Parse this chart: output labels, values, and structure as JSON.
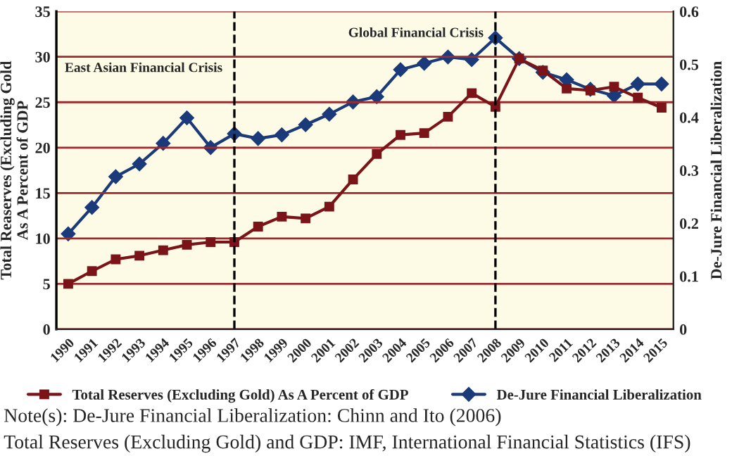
{
  "chart_data": {
    "type": "line",
    "categories": [
      "1990",
      "1991",
      "1992",
      "1993",
      "1994",
      "1995",
      "1996",
      "1997",
      "1998",
      "1999",
      "2000",
      "2001",
      "2002",
      "2003",
      "2004",
      "2005",
      "2006",
      "2007",
      "2008",
      "2009",
      "2010",
      "2011",
      "2012",
      "2013",
      "2014",
      "2015"
    ],
    "series": [
      {
        "name": "Total Reserves (Excluding Gold) As A Percent of GDP",
        "color": "#7b1418",
        "marker": "square",
        "values": [
          5.0,
          6.4,
          7.7,
          8.1,
          8.7,
          9.3,
          9.6,
          9.6,
          11.3,
          12.4,
          12.2,
          13.5,
          16.5,
          19.3,
          21.4,
          21.6,
          23.4,
          26.0,
          24.5,
          29.8,
          28.5,
          26.5,
          26.3,
          26.7,
          25.5,
          24.4
        ]
      },
      {
        "name": "De-Jure Financial Liberalization",
        "color": "#1a3a7a",
        "marker": "diamond",
        "axis": "y2",
        "values": [
          0.18,
          0.23,
          0.288,
          0.312,
          0.351,
          0.399,
          0.343,
          0.369,
          0.36,
          0.367,
          0.386,
          0.406,
          0.429,
          0.439,
          0.49,
          0.502,
          0.514,
          0.509,
          0.55,
          0.511,
          0.485,
          0.471,
          0.453,
          0.441,
          0.463,
          0.463
        ]
      }
    ],
    "ylabel": "Total Reaserves (Excluding Gold\nAs A Percent of GDP",
    "y2label": "De-Jure Financial Liberalization",
    "ylim": [
      0,
      35
    ],
    "yticks": [
      0,
      5,
      10,
      15,
      20,
      25,
      30,
      35
    ],
    "y2lim": [
      0,
      0.6
    ],
    "y2ticks": [
      0,
      0.1,
      0.2,
      0.3,
      0.4,
      0.5,
      0.6
    ],
    "grid": "y",
    "legend": "bottom",
    "line_style": "solid",
    "ref_lines": [
      {
        "axis": "x",
        "value": "1997",
        "label": "East Asian Financial Crisis",
        "color": "#000000",
        "line_style": "dashed"
      },
      {
        "axis": "x",
        "value": "2008",
        "label": "Global Financial Crisis",
        "color": "#000000",
        "line_style": "dashed"
      }
    ],
    "annotations": [
      "Note(s): De-Jure Financial Liberalization: Chinn and Ito (2006)",
      "Total Reserves (Excluding Gold) and GDP: IMF, International Financial Statistics (IFS)"
    ]
  }
}
